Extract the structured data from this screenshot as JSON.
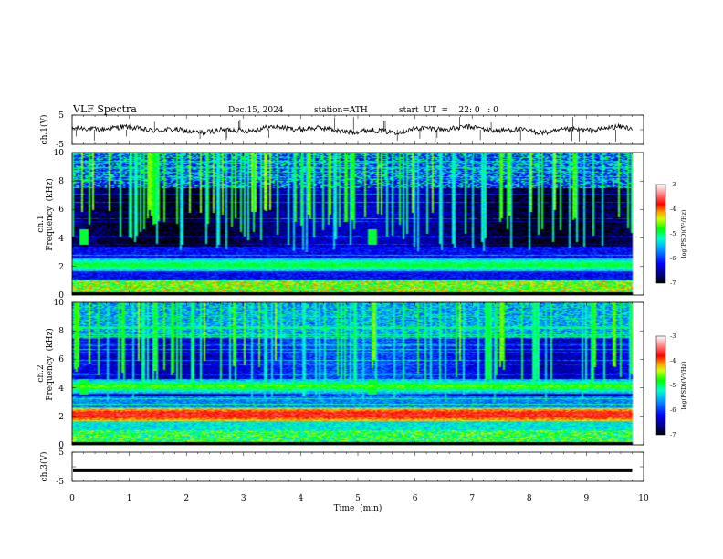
{
  "header": {
    "title": "VLF  Spectra",
    "date": "Dec.15, 2024",
    "station": "station=ATH",
    "start_ut": "start  UT  =    22: 0   : 0"
  },
  "chart_data": [
    {
      "type": "line",
      "panel": "ch1-waveform",
      "ylabel": "ch.1(V)",
      "ylim": [
        -5,
        5
      ],
      "yticks": [
        5,
        -5
      ],
      "xlim": [
        0,
        10
      ],
      "series": [
        {
          "name": "ch.1",
          "color": "#000000"
        }
      ]
    },
    {
      "type": "heatmap",
      "panel": "ch1-spectrogram",
      "ylabel": [
        "ch.1",
        "Frequency  (kHz)"
      ],
      "ylim": [
        0,
        10
      ],
      "yticks": [
        0,
        2,
        4,
        6,
        8,
        10
      ],
      "xlim": [
        0,
        10
      ],
      "colorbar": {
        "label": "log(PSD)(V²/Hz)",
        "range": [
          -7,
          -3
        ],
        "ticks": [
          "-3",
          "-4",
          "-5",
          "-6",
          "-7"
        ]
      },
      "features": {
        "data_end_min": 9.8,
        "noise_floor_log": -6.2,
        "band_2kHz_log": -4.8,
        "lines_below_1kHz_log": -4.0,
        "sferic_bursts_min": [
          0.2,
          5.25
        ]
      }
    },
    {
      "type": "heatmap",
      "panel": "ch2-spectrogram",
      "ylabel": [
        "ch.2",
        "Frequency  (kHz)"
      ],
      "ylim": [
        0,
        10
      ],
      "yticks": [
        0,
        2,
        4,
        6,
        8,
        10
      ],
      "xlim": [
        0,
        10
      ],
      "colorbar": {
        "label": "log(PSD)(V²/Hz)",
        "range": [
          -7,
          -3
        ],
        "ticks": [
          "-3",
          "-4",
          "-5",
          "-6",
          "-7"
        ]
      },
      "features": {
        "data_end_min": 9.8,
        "noise_floor_log": -5.7,
        "band_2kHz_log": -4.0,
        "band_4kHz_log": -4.6,
        "sferic_bursts_min": [
          0.2,
          5.25
        ]
      }
    },
    {
      "type": "line",
      "panel": "ch3-waveform",
      "ylabel": "ch.3(V)",
      "ylim": [
        -5,
        5
      ],
      "yticks": [
        5,
        -5
      ],
      "xlim": [
        0,
        10
      ],
      "series": [
        {
          "name": "ch.3",
          "value": -1.2,
          "color": "#000000"
        }
      ]
    }
  ],
  "xaxis": {
    "label": "Time  (min)",
    "ticks": [
      "0",
      "1",
      "2",
      "3",
      "4",
      "5",
      "6",
      "7",
      "8",
      "9",
      "10"
    ]
  }
}
